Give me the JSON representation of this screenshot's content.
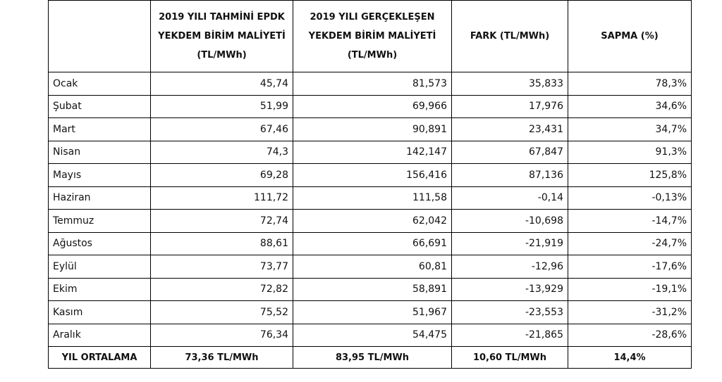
{
  "table": {
    "headers": [
      [
        "2019 YILI TAHMİNİ EPDK",
        "YEKDEM BİRİM MALİYETİ",
        "(TL/MWh)"
      ],
      [
        "2019 YILI GERÇEKLEŞEN",
        "YEKDEM BİRİM MALİYETİ",
        "(TL/MWh)"
      ],
      [
        "FARK (TL/MWh)"
      ],
      [
        "SAPMA (%)"
      ]
    ],
    "rows": [
      [
        "Ocak",
        "45,74",
        "81,573",
        "35,833",
        "78,3%"
      ],
      [
        "Şubat",
        "51,99",
        "69,966",
        "17,976",
        "34,6%"
      ],
      [
        "Mart",
        "67,46",
        "90,891",
        "23,431",
        "34,7%"
      ],
      [
        "Nisan",
        "74,3",
        "142,147",
        "67,847",
        "91,3%"
      ],
      [
        "Mayıs",
        "69,28",
        "156,416",
        "87,136",
        "125,8%"
      ],
      [
        "Haziran",
        "111,72",
        "111,58",
        "-0,14",
        "-0,13%"
      ],
      [
        "Temmuz",
        "72,74",
        "62,042",
        "-10,698",
        "-14,7%"
      ],
      [
        "Ağustos",
        "88,61",
        "66,691",
        "-21,919",
        "-24,7%"
      ],
      [
        "Eylül",
        "73,77",
        "60,81",
        "-12,96",
        "-17,6%"
      ],
      [
        "Ekim",
        "72,82",
        "58,891",
        "-13,929",
        "-19,1%"
      ],
      [
        "Kasım",
        "75,52",
        "51,967",
        "-23,553",
        "-31,2%"
      ],
      [
        "Aralık",
        "76,34",
        "54,475",
        "-21,865",
        "-28,6%"
      ]
    ],
    "footer": [
      "YIL ORTALAMA",
      "73,36 TL/MWh",
      "83,95 TL/MWh",
      "10,60 TL/MWh",
      "14,4%"
    ]
  }
}
